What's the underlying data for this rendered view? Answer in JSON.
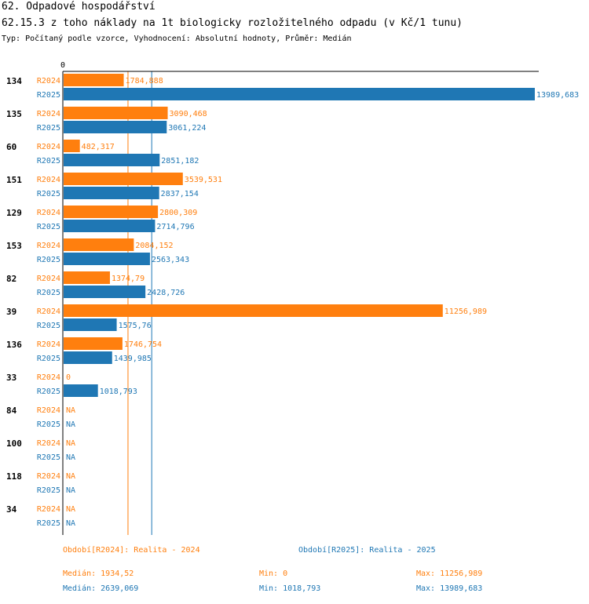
{
  "header": {
    "section": "62. Odpadové hospodářství",
    "indicator": "62.15.3 z toho náklady na 1t biologicky rozložitelného odpadu (v Kč/1 tunu)",
    "subtitle": "Typ: Počítaný podle vzorce, Vyhodnocení: Absolutní hodnoty, Průměr: Medián"
  },
  "colors": {
    "R2024": "#ff7f0e",
    "R2025": "#1f77b4",
    "axis": "#000000"
  },
  "chart_data": {
    "type": "bar",
    "orientation": "horizontal",
    "axis_zero_label": "0",
    "xlim": [
      0,
      13989.683
    ],
    "categories": [
      "134",
      "135",
      "60",
      "151",
      "129",
      "153",
      "82",
      "39",
      "136",
      "33",
      "84",
      "100",
      "118",
      "34"
    ],
    "series": [
      {
        "name": "R2024",
        "values": [
          1784.888,
          3090.468,
          482.317,
          3539.531,
          2800.309,
          2084.152,
          1374.79,
          11256.989,
          1746.754,
          0,
          null,
          null,
          null,
          null
        ],
        "labels": [
          "1784,888",
          "3090,468",
          "482,317",
          "3539,531",
          "2800,309",
          "2084,152",
          "1374,79",
          "11256,989",
          "1746,754",
          "0",
          "NA",
          "NA",
          "NA",
          "NA"
        ],
        "median": 1934.52
      },
      {
        "name": "R2025",
        "values": [
          13989.683,
          3061.224,
          2851.182,
          2837.154,
          2714.796,
          2563.343,
          2428.726,
          1575.76,
          1439.985,
          1018.793,
          null,
          null,
          null,
          null
        ],
        "labels": [
          "13989,683",
          "3061,224",
          "2851,182",
          "2837,154",
          "2714,796",
          "2563,343",
          "2428,726",
          "1575,76",
          "1439,985",
          "1018,793",
          "NA",
          "NA",
          "NA",
          "NA"
        ],
        "median": 2639.069
      }
    ]
  },
  "legend": {
    "r2024": "Období[R2024]: Realita - 2024",
    "r2025": "Období[R2025]: Realita - 2025"
  },
  "stats": {
    "r2024": {
      "median": "Medián: 1934,52",
      "min": "Min: 0",
      "max": "Max: 11256,989"
    },
    "r2025": {
      "median": "Medián: 2639,069",
      "min": "Min: 1018,793",
      "max": "Max: 13989,683"
    }
  }
}
